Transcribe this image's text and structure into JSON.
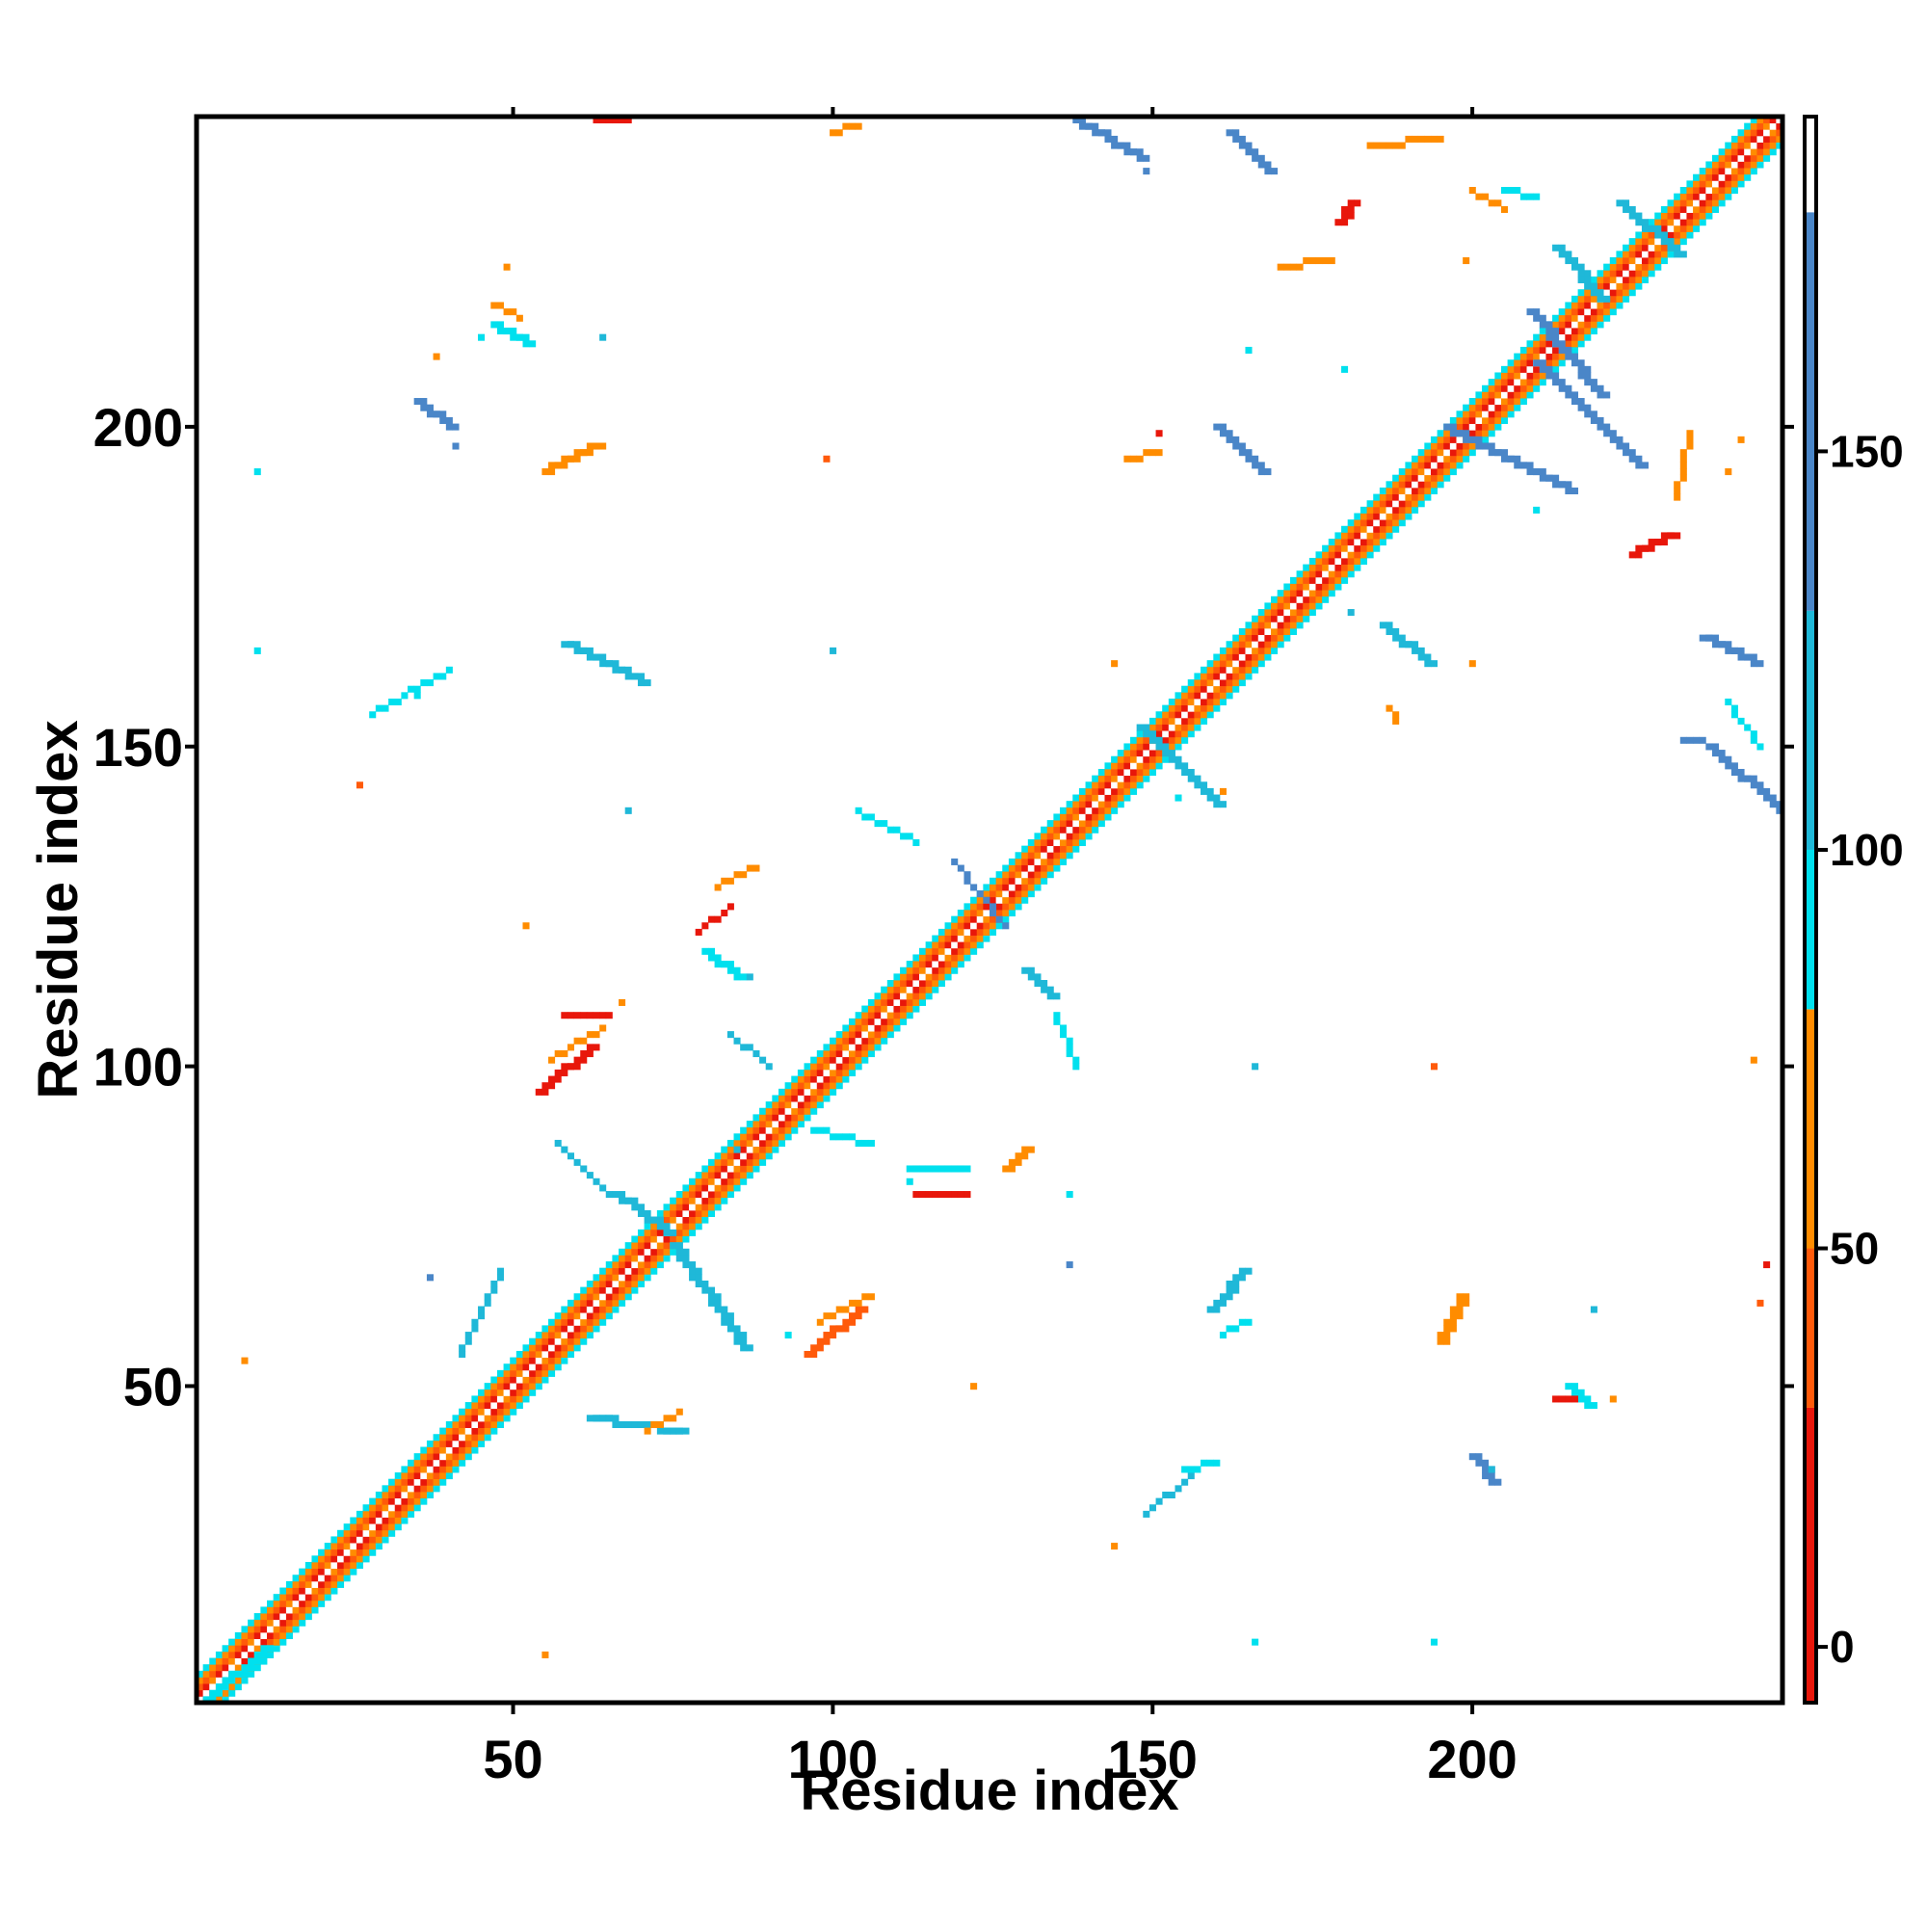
{
  "chart_data": {
    "type": "heatmap",
    "xlabel": "Residue index",
    "ylabel": "Residue index",
    "xlim": [
      1,
      248
    ],
    "ylim": [
      1,
      248
    ],
    "x_ticks": [
      50,
      100,
      150,
      200
    ],
    "y_ticks": [
      50,
      100,
      150,
      200
    ],
    "colorbar": {
      "ticks": [
        0,
        50,
        100,
        150
      ],
      "range": [
        -7,
        192
      ],
      "bands": [
        {
          "from": -7,
          "to": 30,
          "color": "#e8170b"
        },
        {
          "from": 30,
          "to": 50,
          "color": "#ff5a0a"
        },
        {
          "from": 50,
          "to": 80,
          "color": "#ff8c00"
        },
        {
          "from": 80,
          "to": 100,
          "color": "#00e0ee"
        },
        {
          "from": 100,
          "to": 130,
          "color": "#1fb8d8"
        },
        {
          "from": 130,
          "to": 180,
          "color": "#4a86c8"
        },
        {
          "from": 180,
          "to": 192,
          "color": "#ffffff"
        }
      ]
    },
    "palette": {
      "red": "#e8170b",
      "redorange": "#ff5a0a",
      "orange": "#ff8c00",
      "cyan": "#00e0ee",
      "skyblue": "#1fb8d8",
      "steelblue": "#4a86c8"
    },
    "diagonal": {
      "from": 1,
      "to": 248,
      "bands": [
        "orange",
        "red",
        "redorange",
        "orange",
        "cyan"
      ]
    },
    "segments": [
      {
        "x1": 148,
        "y1": 153,
        "x2": 160,
        "y2": 141,
        "color": "skyblue",
        "w": 2
      },
      {
        "x1": 223,
        "y1": 235,
        "x2": 232,
        "y2": 227,
        "color": "skyblue",
        "w": 2
      },
      {
        "x1": 209,
        "y1": 218,
        "x2": 220,
        "y2": 205,
        "color": "steelblue",
        "w": 2
      },
      {
        "x1": 196,
        "y1": 200,
        "x2": 215,
        "y2": 190,
        "color": "steelblue",
        "w": 2
      },
      {
        "x1": 210,
        "y1": 210,
        "x2": 226,
        "y2": 194,
        "color": "steelblue",
        "w": 2
      },
      {
        "x1": 160,
        "y1": 200,
        "x2": 167,
        "y2": 193,
        "color": "steelblue",
        "w": 2
      },
      {
        "x1": 138,
        "y1": 248,
        "x2": 148,
        "y2": 242,
        "color": "steelblue",
        "w": 2
      },
      {
        "x1": 162,
        "y1": 246,
        "x2": 168,
        "y2": 240,
        "color": "steelblue",
        "w": 2
      },
      {
        "x1": 213,
        "y1": 228,
        "x2": 220,
        "y2": 220,
        "color": "skyblue",
        "w": 2
      },
      {
        "x1": 186,
        "y1": 169,
        "x2": 193,
        "y2": 163,
        "color": "skyblue",
        "w": 2
      },
      {
        "x1": 236,
        "y1": 167,
        "x2": 244,
        "y2": 163,
        "color": "steelblue",
        "w": 2
      },
      {
        "x1": 237,
        "y1": 150,
        "x2": 248,
        "y2": 140,
        "color": "steelblue",
        "w": 2
      },
      {
        "x1": 240,
        "y1": 157,
        "x2": 245,
        "y2": 150,
        "color": "cyan",
        "w": 1
      },
      {
        "x1": 233,
        "y1": 151,
        "x2": 236,
        "y2": 151,
        "color": "steelblue",
        "w": 1
      },
      {
        "x1": 187,
        "y1": 156,
        "x2": 188,
        "y2": 154,
        "color": "orange",
        "w": 1
      },
      {
        "x1": 104,
        "y1": 140,
        "x2": 113,
        "y2": 135,
        "color": "cyan",
        "w": 1
      },
      {
        "x1": 119,
        "y1": 132,
        "x2": 127,
        "y2": 122,
        "color": "steelblue",
        "w": 1
      },
      {
        "x1": 130,
        "y1": 115,
        "x2": 134,
        "y2": 111,
        "color": "skyblue",
        "w": 2
      },
      {
        "x1": 135,
        "y1": 108,
        "x2": 138,
        "y2": 100,
        "color": "cyan",
        "w": 1
      },
      {
        "x1": 58,
        "y1": 166,
        "x2": 70,
        "y2": 160,
        "color": "skyblue",
        "w": 2
      },
      {
        "x1": 28,
        "y1": 155,
        "x2": 40,
        "y2": 162,
        "color": "cyan",
        "w": 1
      },
      {
        "x1": 35,
        "y1": 204,
        "x2": 40,
        "y2": 200,
        "color": "steelblue",
        "w": 2
      },
      {
        "x1": 47,
        "y1": 216,
        "x2": 52,
        "y2": 213,
        "color": "cyan",
        "w": 2
      },
      {
        "x1": 55,
        "y1": 193,
        "x2": 63,
        "y2": 197,
        "color": "orange",
        "w": 2
      },
      {
        "x1": 80,
        "y1": 118,
        "x2": 85,
        "y2": 114,
        "color": "cyan",
        "w": 2
      },
      {
        "x1": 79,
        "y1": 121,
        "x2": 84,
        "y2": 125,
        "color": "red",
        "w": 1
      },
      {
        "x1": 82,
        "y1": 128,
        "x2": 88,
        "y2": 131,
        "color": "orange",
        "w": 1
      },
      {
        "x1": 54,
        "y1": 96,
        "x2": 62,
        "y2": 103,
        "color": "red",
        "w": 2
      },
      {
        "x1": 56,
        "y1": 101,
        "x2": 64,
        "y2": 106,
        "color": "orange",
        "w": 1
      },
      {
        "x1": 58,
        "y1": 108,
        "x2": 65,
        "y2": 108,
        "color": "red",
        "w": 1
      },
      {
        "x1": 96,
        "y1": 55,
        "x2": 104,
        "y2": 62,
        "color": "redorange",
        "w": 2
      },
      {
        "x1": 98,
        "y1": 60,
        "x2": 106,
        "y2": 64,
        "color": "orange",
        "w": 1
      },
      {
        "x1": 57,
        "y1": 88,
        "x2": 65,
        "y2": 80,
        "color": "skyblue",
        "w": 1
      },
      {
        "x1": 66,
        "y1": 80,
        "x2": 74,
        "y2": 74,
        "color": "skyblue",
        "w": 2
      },
      {
        "x1": 75,
        "y1": 72,
        "x2": 86,
        "y2": 56,
        "color": "skyblue",
        "w": 2
      },
      {
        "x1": 42,
        "y1": 55,
        "x2": 48,
        "y2": 68,
        "color": "skyblue",
        "w": 1
      },
      {
        "x1": 62,
        "y1": 45,
        "x2": 76,
        "y2": 43,
        "color": "skyblue",
        "w": 2
      },
      {
        "x1": 71,
        "y1": 43,
        "x2": 76,
        "y2": 46,
        "color": "orange",
        "w": 1
      },
      {
        "x1": 112,
        "y1": 84,
        "x2": 120,
        "y2": 84,
        "color": "cyan",
        "w": 2
      },
      {
        "x1": 113,
        "y1": 80,
        "x2": 121,
        "y2": 80,
        "color": "red",
        "w": 1
      },
      {
        "x1": 127,
        "y1": 84,
        "x2": 130,
        "y2": 87,
        "color": "orange",
        "w": 2
      },
      {
        "x1": 84,
        "y1": 105,
        "x2": 90,
        "y2": 100,
        "color": "skyblue",
        "w": 1
      },
      {
        "x1": 97,
        "y1": 90,
        "x2": 106,
        "y2": 88,
        "color": "cyan",
        "w": 1
      },
      {
        "x1": 159,
        "y1": 62,
        "x2": 164,
        "y2": 68,
        "color": "skyblue",
        "w": 2
      },
      {
        "x1": 161,
        "y1": 58,
        "x2": 165,
        "y2": 60,
        "color": "cyan",
        "w": 1
      },
      {
        "x1": 149,
        "y1": 30,
        "x2": 156,
        "y2": 36,
        "color": "skyblue",
        "w": 1
      },
      {
        "x1": 155,
        "y1": 37,
        "x2": 160,
        "y2": 38,
        "color": "cyan",
        "w": 1
      },
      {
        "x1": 195,
        "y1": 57,
        "x2": 198,
        "y2": 64,
        "color": "orange",
        "w": 2
      },
      {
        "x1": 215,
        "y1": 50,
        "x2": 218,
        "y2": 47,
        "color": "cyan",
        "w": 2
      },
      {
        "x1": 213,
        "y1": 48,
        "x2": 216,
        "y2": 48,
        "color": "red",
        "w": 1
      },
      {
        "x1": 200,
        "y1": 39,
        "x2": 203,
        "y2": 35,
        "color": "steelblue",
        "w": 2
      },
      {
        "x1": 225,
        "y1": 180,
        "x2": 231,
        "y2": 183,
        "color": "red",
        "w": 2
      },
      {
        "x1": 232,
        "y1": 189,
        "x2": 234,
        "y2": 199,
        "color": "orange",
        "w": 1
      },
      {
        "x1": 170,
        "y1": 225,
        "x2": 178,
        "y2": 226,
        "color": "orange",
        "w": 1
      },
      {
        "x1": 179,
        "y1": 232,
        "x2": 181,
        "y2": 235,
        "color": "red",
        "w": 2
      },
      {
        "x1": 184,
        "y1": 244,
        "x2": 195,
        "y2": 245,
        "color": "orange",
        "w": 1
      },
      {
        "x1": 200,
        "y1": 237,
        "x2": 205,
        "y2": 234,
        "color": "orange",
        "w": 1
      },
      {
        "x1": 205,
        "y1": 237,
        "x2": 210,
        "y2": 236,
        "color": "cyan",
        "w": 1
      },
      {
        "x1": 146,
        "y1": 195,
        "x2": 151,
        "y2": 196,
        "color": "orange",
        "w": 1
      },
      {
        "x1": 63,
        "y1": 248,
        "x2": 68,
        "y2": 248,
        "color": "red",
        "w": 1
      },
      {
        "x1": 100,
        "y1": 246,
        "x2": 104,
        "y2": 247,
        "color": "orange",
        "w": 1
      },
      {
        "x1": 47,
        "y1": 219,
        "x2": 51,
        "y2": 217,
        "color": "orange",
        "w": 1
      },
      {
        "x1": 2,
        "y1": 1,
        "x2": 11,
        "y2": 9,
        "color": "cyan",
        "w": 2
      }
    ],
    "points": [
      {
        "x": 10,
        "y": 193,
        "color": "cyan"
      },
      {
        "x": 10,
        "y": 165,
        "color": "cyan"
      },
      {
        "x": 8,
        "y": 54,
        "color": "orange"
      },
      {
        "x": 26,
        "y": 144,
        "color": "redorange"
      },
      {
        "x": 35,
        "y": 158,
        "color": "cyan"
      },
      {
        "x": 49,
        "y": 225,
        "color": "orange"
      },
      {
        "x": 99,
        "y": 195,
        "color": "redorange"
      },
      {
        "x": 100,
        "y": 165,
        "color": "skyblue"
      },
      {
        "x": 68,
        "y": 140,
        "color": "skyblue"
      },
      {
        "x": 144,
        "y": 25,
        "color": "orange"
      },
      {
        "x": 144,
        "y": 163,
        "color": "orange"
      },
      {
        "x": 149,
        "y": 240,
        "color": "steelblue"
      },
      {
        "x": 151,
        "y": 199,
        "color": "red"
      },
      {
        "x": 165,
        "y": 212,
        "color": "cyan"
      },
      {
        "x": 166,
        "y": 100,
        "color": "skyblue"
      },
      {
        "x": 166,
        "y": 10,
        "color": "cyan"
      },
      {
        "x": 194,
        "y": 10,
        "color": "cyan"
      },
      {
        "x": 194,
        "y": 100,
        "color": "redorange"
      },
      {
        "x": 180,
        "y": 209,
        "color": "cyan"
      },
      {
        "x": 181,
        "y": 171,
        "color": "skyblue"
      },
      {
        "x": 210,
        "y": 187,
        "color": "cyan"
      },
      {
        "x": 222,
        "y": 48,
        "color": "orange"
      },
      {
        "x": 245,
        "y": 63,
        "color": "redorange"
      },
      {
        "x": 246,
        "y": 69,
        "color": "red"
      },
      {
        "x": 244,
        "y": 101,
        "color": "orange"
      },
      {
        "x": 242,
        "y": 198,
        "color": "orange"
      },
      {
        "x": 240,
        "y": 193,
        "color": "orange"
      },
      {
        "x": 161,
        "y": 143,
        "color": "orange"
      },
      {
        "x": 154,
        "y": 142,
        "color": "cyan"
      },
      {
        "x": 55,
        "y": 8,
        "color": "orange"
      },
      {
        "x": 122,
        "y": 50,
        "color": "orange"
      },
      {
        "x": 137,
        "y": 80,
        "color": "cyan"
      },
      {
        "x": 137,
        "y": 69,
        "color": "steelblue"
      },
      {
        "x": 112,
        "y": 82,
        "color": "cyan"
      },
      {
        "x": 93,
        "y": 58,
        "color": "cyan"
      },
      {
        "x": 85,
        "y": 87,
        "color": "skyblue"
      },
      {
        "x": 87,
        "y": 114,
        "color": "skyblue"
      },
      {
        "x": 67,
        "y": 110,
        "color": "orange"
      },
      {
        "x": 52,
        "y": 122,
        "color": "orange"
      },
      {
        "x": 37,
        "y": 67,
        "color": "steelblue"
      },
      {
        "x": 41,
        "y": 197,
        "color": "steelblue"
      },
      {
        "x": 38,
        "y": 211,
        "color": "orange"
      },
      {
        "x": 45,
        "y": 214,
        "color": "cyan"
      },
      {
        "x": 64,
        "y": 214,
        "color": "skyblue"
      },
      {
        "x": 200,
        "y": 163,
        "color": "orange"
      },
      {
        "x": 199,
        "y": 226,
        "color": "orange"
      },
      {
        "x": 219,
        "y": 62,
        "color": "skyblue"
      },
      {
        "x": 203,
        "y": 37,
        "color": "skyblue"
      }
    ]
  }
}
